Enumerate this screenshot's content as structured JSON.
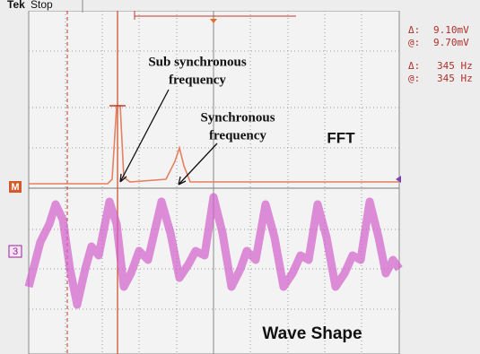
{
  "header": {
    "brand": "Tek",
    "status": "Stop"
  },
  "readouts": [
    {
      "symbol": "Δ:",
      "value": "9.10mV"
    },
    {
      "symbol": "@:",
      "value": "9.70mV"
    },
    {
      "symbol": "Δ:",
      "value": "345 Hz"
    },
    {
      "symbol": "@:",
      "value": "345 Hz"
    }
  ],
  "annotations": {
    "sub_synchronous": [
      "Sub synchronous",
      "frequency"
    ],
    "synchronous": [
      "Synchronous",
      "frequency"
    ],
    "fft": "FFT",
    "wave_shape": "Wave Shape"
  },
  "channel_markers": {
    "math": "M",
    "channel": "3"
  }
}
